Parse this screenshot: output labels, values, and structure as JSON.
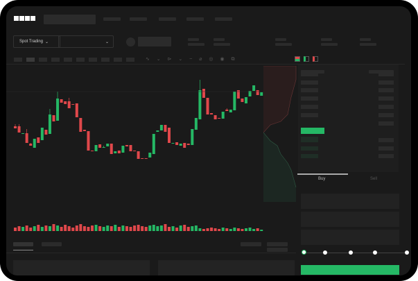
{
  "header": {
    "logo": "OKX"
  },
  "market_selector": {
    "label": "Spot Trading"
  },
  "trade_panel": {
    "tabs": [
      {
        "label": "Buy"
      },
      {
        "label": "Sell"
      }
    ],
    "slider_value_percent": 0,
    "submit_color": "#25b865"
  },
  "colors": {
    "up": "#25b865",
    "down": "#e0484b",
    "background": "#1a1a1a"
  },
  "chart_data": {
    "type": "candlestick",
    "candles": [
      [
        58,
        61,
        55,
        55
      ],
      [
        58,
        61,
        49,
        49
      ],
      [
        47,
        48,
        48,
        48
      ],
      [
        48,
        54,
        34,
        34
      ],
      [
        33,
        34,
        30,
        30
      ],
      [
        27,
        40,
        27,
        40
      ],
      [
        42,
        42,
        34,
        34
      ],
      [
        38,
        56,
        38,
        56
      ],
      [
        53,
        53,
        46,
        46
      ],
      [
        47,
        83,
        47,
        75
      ],
      [
        74,
        74,
        65,
        65
      ],
      [
        66,
        108,
        66,
        98
      ],
      [
        97,
        97,
        92,
        92
      ],
      [
        94,
        94,
        90,
        90
      ],
      [
        94,
        99,
        84,
        84
      ],
      [
        90,
        90,
        89,
        89
      ],
      [
        91,
        91,
        71,
        71
      ],
      [
        70,
        70,
        50,
        50
      ],
      [
        53,
        53,
        51,
        51
      ],
      [
        51,
        51,
        23,
        23
      ],
      [
        23,
        23,
        22,
        22
      ],
      [
        22,
        31,
        22,
        31
      ],
      [
        32,
        32,
        27,
        27
      ],
      [
        28,
        30,
        28,
        28
      ],
      [
        29,
        33,
        29,
        33
      ],
      [
        33,
        33,
        18,
        18
      ],
      [
        19,
        22,
        19,
        22
      ],
      [
        23,
        23,
        19,
        19
      ],
      [
        20,
        30,
        20,
        30
      ],
      [
        31,
        31,
        29,
        29
      ],
      [
        31,
        31,
        22,
        22
      ],
      [
        23,
        23,
        22,
        22
      ],
      [
        22,
        22,
        11,
        11
      ],
      [
        12,
        12,
        11,
        11
      ],
      [
        12,
        12,
        11,
        11
      ],
      [
        13,
        20,
        13,
        20
      ],
      [
        18,
        47,
        18,
        47
      ],
      [
        50,
        52,
        50,
        52
      ],
      [
        52,
        60,
        52,
        60
      ],
      [
        60,
        60,
        50,
        50
      ],
      [
        56,
        56,
        34,
        34
      ],
      [
        33,
        34,
        33,
        34
      ],
      [
        35,
        35,
        31,
        31
      ],
      [
        30,
        33,
        30,
        33
      ],
      [
        34,
        34,
        27,
        27
      ],
      [
        33,
        33,
        31,
        31
      ],
      [
        31,
        54,
        31,
        54
      ],
      [
        53,
        70,
        53,
        70
      ],
      [
        68,
        125,
        68,
        110
      ],
      [
        112,
        112,
        99,
        99
      ],
      [
        99,
        99,
        75,
        75
      ],
      [
        77,
        77,
        75,
        75
      ],
      [
        74,
        74,
        68,
        68
      ],
      [
        70,
        70,
        69,
        69
      ],
      [
        69,
        79,
        69,
        79
      ],
      [
        82,
        84,
        80,
        80
      ],
      [
        78,
        82,
        78,
        82
      ],
      [
        81,
        108,
        81,
        108
      ],
      [
        110,
        110,
        98,
        98
      ],
      [
        98,
        98,
        93,
        93
      ],
      [
        91,
        100,
        91,
        100
      ],
      [
        101,
        109,
        101,
        109
      ],
      [
        109,
        117,
        109,
        117
      ],
      [
        110,
        110,
        103,
        103
      ],
      [
        102,
        107,
        102,
        107
      ]
    ],
    "volumes": [
      6,
      8,
      7,
      9,
      6,
      8,
      10,
      7,
      9,
      8,
      11,
      9,
      7,
      10,
      8,
      6,
      9,
      11,
      8,
      7,
      9,
      10,
      8,
      7,
      9,
      8,
      10,
      7,
      9,
      8,
      7,
      9,
      10,
      8,
      7,
      9,
      10,
      8,
      9,
      11,
      7,
      8,
      6,
      9,
      10,
      7,
      8,
      9,
      5,
      4,
      5,
      6,
      5,
      4,
      6,
      5,
      4,
      6,
      5,
      4,
      5,
      6,
      4,
      5,
      3
    ],
    "grid": false
  }
}
